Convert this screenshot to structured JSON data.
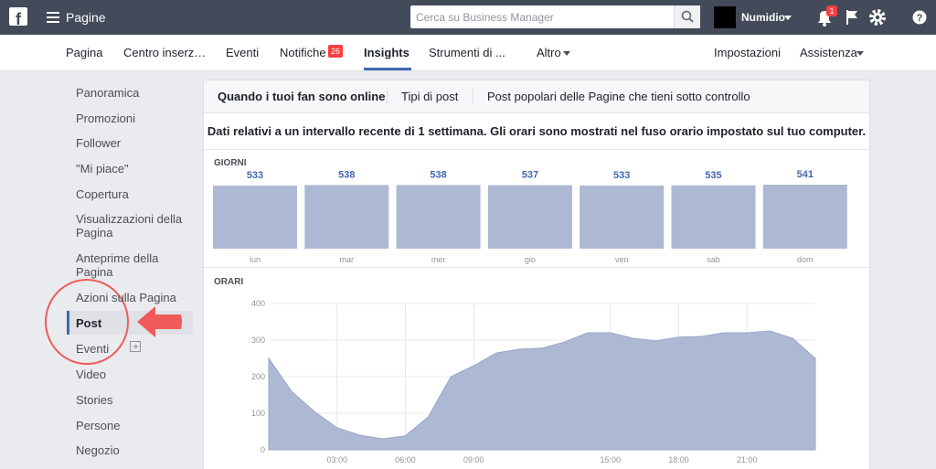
{
  "topbar": {
    "title": "Pagine",
    "search_placeholder": "Cerca su Business Manager",
    "account": "Numidio",
    "notification_count": 1
  },
  "nav": {
    "tabs": [
      "Pagina",
      "Centro inserz…",
      "Eventi",
      "Notifiche",
      "Insights",
      "Strumenti di ...",
      "Altro"
    ],
    "notifiche_badge": 26,
    "right": [
      "Impostazioni",
      "Assistenza"
    ]
  },
  "sidebar": {
    "items": [
      "Panoramica",
      "Promozioni",
      "Follower",
      "\"Mi piace\"",
      "Copertura",
      "Visualizzazioni della Pagina",
      "Anteprime della Pagina",
      "Azioni sulla Pagina",
      "Post",
      "Eventi",
      "Video",
      "Stories",
      "Persone",
      "Negozio"
    ],
    "active": "Post"
  },
  "content": {
    "tabs": [
      "Quando i tuoi fan sono online",
      "Tipi di post",
      "Post popolari delle Pagine che tieni sotto controllo"
    ],
    "description": "Dati relativi a un intervallo recente di 1 settimana. Gli orari sono mostrati nel fuso orario impostato sul tuo computer."
  },
  "chart_data": [
    {
      "type": "bar",
      "title": "GIORNI",
      "categories": [
        "lun",
        "mar",
        "mer",
        "gio",
        "ven",
        "sab",
        "dom"
      ],
      "values": [
        533,
        538,
        538,
        537,
        533,
        535,
        541
      ],
      "color": "#adb9d3"
    },
    {
      "type": "area",
      "title": "ORARI",
      "x": [
        0,
        1,
        2,
        3,
        4,
        5,
        6,
        7,
        8,
        9,
        10,
        11,
        12,
        13,
        14,
        15,
        16,
        17,
        18,
        19,
        20,
        21,
        22,
        23,
        24
      ],
      "values": [
        250,
        160,
        105,
        60,
        40,
        30,
        38,
        90,
        200,
        230,
        265,
        275,
        278,
        295,
        320,
        320,
        305,
        298,
        308,
        310,
        320,
        320,
        325,
        305,
        250
      ],
      "color": "#adb9d3",
      "xlim": [
        0,
        24
      ],
      "xticks": [
        {
          "value": 3,
          "label": "03:00"
        },
        {
          "value": 6,
          "label": "06:00"
        },
        {
          "value": 9,
          "label": "09:00"
        },
        {
          "value": 15,
          "label": "15:00"
        },
        {
          "value": 18,
          "label": "18:00"
        },
        {
          "value": 21,
          "label": "21:00"
        }
      ],
      "ylim": [
        0,
        400
      ],
      "yticks": [
        0,
        100,
        200,
        300,
        400
      ],
      "grid": true
    }
  ]
}
